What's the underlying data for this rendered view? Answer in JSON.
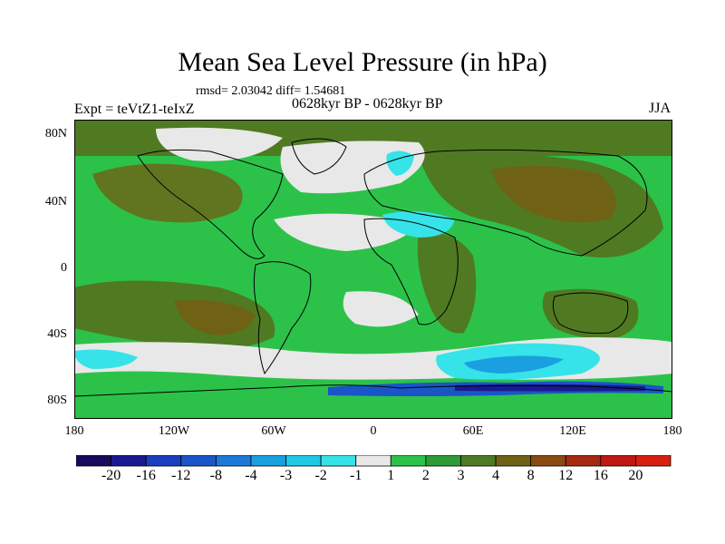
{
  "title": "Mean Sea Level Pressure (in hPa)",
  "stats": "rmsd= 2.03042 diff= 1.54681",
  "experiment": "Expt = teVtZ1-teIxZ",
  "period": "0628kyr BP - 0628kyr BP",
  "season": "JJA",
  "axes": {
    "y_ticks": [
      "80N",
      "40N",
      "0",
      "40S",
      "80S"
    ],
    "x_ticks": [
      "180",
      "120W",
      "60W",
      "0",
      "60E",
      "120E",
      "180"
    ]
  },
  "colorbar": {
    "labels": [
      "-20",
      "-16",
      "-12",
      "-8",
      "-4",
      "-3",
      "-2",
      "-1",
      "1",
      "2",
      "3",
      "4",
      "8",
      "12",
      "16",
      "20"
    ],
    "colors": [
      "#1a0a5e",
      "#1a1a90",
      "#1b3fbf",
      "#1a55c8",
      "#1e78d8",
      "#1aa0e0",
      "#20c8e6",
      "#36e3e8",
      "#e8e8e8",
      "#2cc24a",
      "#2f9a36",
      "#4f7a22",
      "#6f6215",
      "#8a4a12",
      "#a42a10",
      "#c01812",
      "#d82010"
    ]
  },
  "palette": {
    "ocean_default": "#2cc24a",
    "land_high": "#4f7a22",
    "land_mid": "#2f9a36",
    "near_zero": "#e8e8e8",
    "neg_light": "#36e3e8",
    "neg_mid": "#1aa0e0",
    "neg_strong": "#1a55c8",
    "neg_extreme": "#1a1a90",
    "pos_high": "#6f6215"
  }
}
